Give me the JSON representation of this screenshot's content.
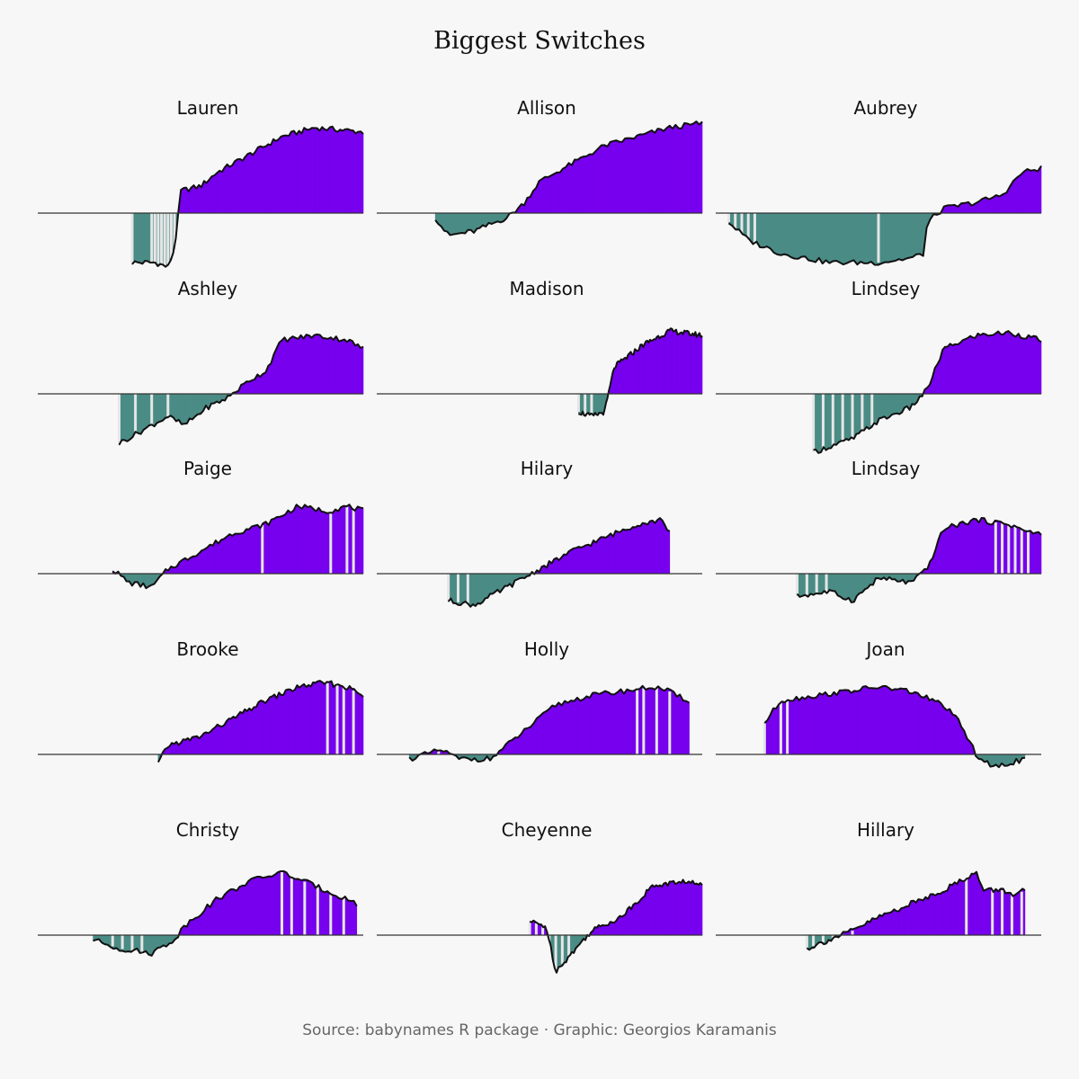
{
  "title": "Biggest Switches",
  "caption": "Source: babynames R package · Graphic: Georgios Karamanis",
  "colors": {
    "positive": "#7700ee",
    "negative": "#4a8c85",
    "missing": "#e6e6e6",
    "outline": "#111111",
    "axis": "#333333",
    "background": "#f7f7f8"
  },
  "chart_data": {
    "type": "area",
    "description_of_encoding": "",
    "panels": [
      {
        "name": "Lauren",
        "profile": [
          [
            0,
            null
          ],
          [
            0.29,
            -0.55
          ],
          [
            0.36,
            -0.55
          ],
          [
            0.4,
            -0.6
          ],
          [
            0.42,
            -0.4
          ],
          [
            0.44,
            0.25
          ],
          [
            0.5,
            0.3
          ],
          [
            0.55,
            0.45
          ],
          [
            0.65,
            0.65
          ],
          [
            0.75,
            0.85
          ],
          [
            0.85,
            0.95
          ],
          [
            0.95,
            0.92
          ],
          [
            1,
            0.9
          ]
        ],
        "gaps": [
          0.29,
          0.35,
          0.36,
          0.37,
          0.38,
          0.39,
          0.4,
          0.41,
          0.42
        ]
      },
      {
        "name": "Allison",
        "profile": [
          [
            0,
            null
          ],
          [
            0.18,
            -0.05
          ],
          [
            0.22,
            -0.25
          ],
          [
            0.3,
            -0.2
          ],
          [
            0.4,
            -0.05
          ],
          [
            0.45,
            0.1
          ],
          [
            0.5,
            0.35
          ],
          [
            0.6,
            0.55
          ],
          [
            0.7,
            0.75
          ],
          [
            0.8,
            0.85
          ],
          [
            0.9,
            0.95
          ],
          [
            1,
            1.0
          ]
        ],
        "gaps": []
      },
      {
        "name": "Aubrey",
        "profile": [
          [
            0.04,
            -0.1
          ],
          [
            0.1,
            -0.3
          ],
          [
            0.2,
            -0.45
          ],
          [
            0.35,
            -0.55
          ],
          [
            0.5,
            -0.55
          ],
          [
            0.6,
            -0.5
          ],
          [
            0.64,
            -0.45
          ],
          [
            0.65,
            -0.1
          ],
          [
            0.7,
            0.05
          ],
          [
            0.8,
            0.12
          ],
          [
            0.88,
            0.2
          ],
          [
            0.94,
            0.45
          ],
          [
            1,
            0.5
          ]
        ],
        "gaps": [
          0.04,
          0.06,
          0.08,
          0.1,
          0.12,
          0.5
        ]
      },
      {
        "name": "Ashley",
        "profile": [
          [
            0,
            null
          ],
          [
            0.25,
            -0.55
          ],
          [
            0.4,
            -0.25
          ],
          [
            0.45,
            -0.35
          ],
          [
            0.52,
            -0.15
          ],
          [
            0.58,
            -0.05
          ],
          [
            0.65,
            0.15
          ],
          [
            0.7,
            0.25
          ],
          [
            0.75,
            0.6
          ],
          [
            0.85,
            0.65
          ],
          [
            0.95,
            0.6
          ],
          [
            1,
            0.5
          ]
        ],
        "gaps": [
          0.25,
          0.3,
          0.35,
          0.4
        ]
      },
      {
        "name": "Madison",
        "profile": [
          [
            0,
            null
          ],
          [
            0.62,
            -0.2
          ],
          [
            0.66,
            -0.25
          ],
          [
            0.7,
            -0.2
          ],
          [
            0.73,
            0.3
          ],
          [
            0.82,
            0.55
          ],
          [
            0.9,
            0.7
          ],
          [
            1,
            0.65
          ]
        ],
        "gaps": [
          0.62,
          0.64,
          0.66
        ]
      },
      {
        "name": "Lindsey",
        "profile": [
          [
            0,
            null
          ],
          [
            0.3,
            -0.65
          ],
          [
            0.42,
            -0.5
          ],
          [
            0.5,
            -0.3
          ],
          [
            0.6,
            -0.15
          ],
          [
            0.65,
            0.05
          ],
          [
            0.7,
            0.5
          ],
          [
            0.8,
            0.65
          ],
          [
            0.9,
            0.68
          ],
          [
            1,
            0.6
          ]
        ],
        "gaps": [
          0.3,
          0.33,
          0.36,
          0.39,
          0.42,
          0.45,
          0.48
        ]
      },
      {
        "name": "Paige",
        "profile": [
          [
            0,
            null
          ],
          [
            0.23,
            0.05
          ],
          [
            0.28,
            -0.1
          ],
          [
            0.35,
            -0.15
          ],
          [
            0.4,
            0.05
          ],
          [
            0.5,
            0.25
          ],
          [
            0.6,
            0.45
          ],
          [
            0.7,
            0.55
          ],
          [
            0.8,
            0.75
          ],
          [
            0.88,
            0.7
          ],
          [
            0.9,
            0.7
          ],
          [
            0.95,
            0.75
          ],
          [
            1,
            0.7
          ]
        ],
        "gaps": [
          0.69,
          0.9,
          0.95,
          0.97
        ]
      },
      {
        "name": "Hilary",
        "profile": [
          [
            0,
            null
          ],
          [
            0.22,
            -0.3
          ],
          [
            0.3,
            -0.35
          ],
          [
            0.4,
            -0.15
          ],
          [
            0.5,
            0.05
          ],
          [
            0.6,
            0.25
          ],
          [
            0.7,
            0.4
          ],
          [
            0.8,
            0.55
          ],
          [
            0.88,
            0.6
          ],
          [
            0.9,
            0.45
          ]
        ],
        "gaps": [
          0.22,
          0.25,
          0.28
        ]
      },
      {
        "name": "Lindsay",
        "profile": [
          [
            0,
            null
          ],
          [
            0.25,
            -0.25
          ],
          [
            0.35,
            -0.2
          ],
          [
            0.42,
            -0.3
          ],
          [
            0.5,
            -0.05
          ],
          [
            0.6,
            -0.1
          ],
          [
            0.65,
            0.05
          ],
          [
            0.7,
            0.5
          ],
          [
            0.8,
            0.6
          ],
          [
            0.9,
            0.55
          ],
          [
            0.97,
            0.45
          ],
          [
            1,
            0.45
          ]
        ],
        "gaps": [
          0.25,
          0.28,
          0.31,
          0.34,
          0.86,
          0.88,
          0.9,
          0.92,
          0.94,
          0.96
        ]
      },
      {
        "name": "Brooke",
        "profile": [
          [
            0,
            null
          ],
          [
            0.37,
            -0.1
          ],
          [
            0.4,
            0.1
          ],
          [
            0.5,
            0.2
          ],
          [
            0.6,
            0.4
          ],
          [
            0.7,
            0.6
          ],
          [
            0.8,
            0.75
          ],
          [
            0.88,
            0.8
          ],
          [
            0.95,
            0.75
          ],
          [
            1,
            0.65
          ]
        ],
        "gaps": [
          0.89,
          0.92,
          0.94,
          0.97
        ]
      },
      {
        "name": "Holly",
        "profile": [
          [
            0.1,
            -0.05
          ],
          [
            0.2,
            0.05
          ],
          [
            0.25,
            -0.05
          ],
          [
            0.35,
            -0.05
          ],
          [
            0.45,
            0.25
          ],
          [
            0.55,
            0.55
          ],
          [
            0.65,
            0.65
          ],
          [
            0.75,
            0.7
          ],
          [
            0.85,
            0.75
          ],
          [
            0.9,
            0.7
          ],
          [
            0.92,
            0.65
          ],
          [
            0.96,
            0.6
          ]
        ],
        "gaps": [
          0.19,
          0.8,
          0.82,
          0.86,
          0.9
        ]
      },
      {
        "name": "Joan",
        "profile": [
          [
            0.15,
            0.35
          ],
          [
            0.2,
            0.6
          ],
          [
            0.3,
            0.65
          ],
          [
            0.4,
            0.7
          ],
          [
            0.5,
            0.75
          ],
          [
            0.6,
            0.7
          ],
          [
            0.7,
            0.55
          ],
          [
            0.75,
            0.35
          ],
          [
            0.8,
            0.0
          ],
          [
            0.85,
            -0.15
          ],
          [
            0.9,
            -0.1
          ],
          [
            0.95,
            -0.05
          ]
        ],
        "gaps": [
          0.15,
          0.2,
          0.22
        ]
      },
      {
        "name": "Christy",
        "profile": [
          [
            0,
            null
          ],
          [
            0.17,
            -0.05
          ],
          [
            0.25,
            -0.15
          ],
          [
            0.35,
            -0.2
          ],
          [
            0.42,
            -0.05
          ],
          [
            0.45,
            0.1
          ],
          [
            0.55,
            0.4
          ],
          [
            0.65,
            0.6
          ],
          [
            0.75,
            0.7
          ],
          [
            0.85,
            0.55
          ],
          [
            0.95,
            0.4
          ],
          [
            0.98,
            0.35
          ]
        ],
        "gaps": [
          0.23,
          0.26,
          0.29,
          0.32,
          0.75,
          0.78,
          0.82,
          0.86,
          0.9,
          0.94
        ]
      },
      {
        "name": "Cheyenne",
        "profile": [
          [
            0,
            null
          ],
          [
            0.47,
            0.15
          ],
          [
            0.52,
            0.1
          ],
          [
            0.55,
            -0.4
          ],
          [
            0.6,
            -0.2
          ],
          [
            0.66,
            0.05
          ],
          [
            0.75,
            0.2
          ],
          [
            0.85,
            0.55
          ],
          [
            0.95,
            0.6
          ],
          [
            1,
            0.55
          ]
        ],
        "gaps": [
          0.47,
          0.49,
          0.51,
          0.53,
          0.55,
          0.57,
          0.59
        ]
      },
      {
        "name": "Hillary",
        "profile": [
          [
            0,
            null
          ],
          [
            0.28,
            -0.15
          ],
          [
            0.42,
            0.05
          ],
          [
            0.5,
            0.2
          ],
          [
            0.6,
            0.35
          ],
          [
            0.7,
            0.5
          ],
          [
            0.75,
            0.6
          ],
          [
            0.8,
            0.7
          ],
          [
            0.82,
            0.5
          ],
          [
            0.88,
            0.5
          ],
          [
            0.92,
            0.45
          ],
          [
            0.95,
            0.5
          ]
        ],
        "gaps": [
          0.28,
          0.3,
          0.33,
          0.36,
          0.39,
          0.42,
          0.77,
          0.85,
          0.88,
          0.91,
          0.94
        ]
      }
    ]
  }
}
